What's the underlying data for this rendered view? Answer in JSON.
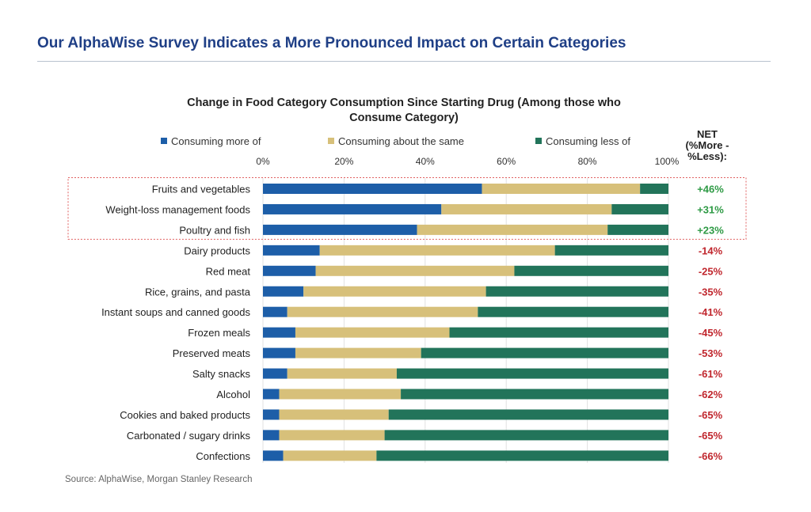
{
  "slide": {
    "title": "Our AlphaWise Survey Indicates a More Pronounced Impact on Certain Categories",
    "source": "Source: AlphaWise, Morgan Stanley Research"
  },
  "chart_data": {
    "type": "bar",
    "orientation": "horizontal",
    "stacked": true,
    "title": "Change in Food Category Consumption Since Starting Drug (Among those who Consume Category)",
    "title_lines": [
      "Change in Food Category Consumption Since Starting Drug (Among those who",
      "Consume Category)"
    ],
    "net_header_lines": [
      "NET",
      "(%More -",
      "%Less):"
    ],
    "x_ticks": [
      "0%",
      "20%",
      "40%",
      "60%",
      "80%",
      "100%"
    ],
    "xlim": [
      0,
      100
    ],
    "grid": true,
    "legend_position": "top",
    "colors": {
      "more": "#1d5ea8",
      "same": "#d7c07a",
      "less": "#22745a",
      "net_positive": "#2e9a45",
      "net_negative": "#c0262d",
      "highlight_box": "#e06060"
    },
    "categories": [
      "Fruits and vegetables",
      "Weight-loss management foods",
      "Poultry and fish",
      "Dairy products",
      "Red meat",
      "Rice, grains, and pasta",
      "Instant soups and canned goods",
      "Frozen meals",
      "Preserved meats",
      "Salty snacks",
      "Alcohol",
      "Cookies and baked products",
      "Carbonated / sugary drinks",
      "Confections"
    ],
    "series": [
      {
        "name": "Consuming more of",
        "values": [
          54,
          44,
          38,
          14,
          13,
          10,
          6,
          8,
          8,
          6,
          4,
          4,
          4,
          5
        ]
      },
      {
        "name": "Consuming about the same",
        "values": [
          39,
          42,
          47,
          58,
          49,
          45,
          47,
          38,
          31,
          27,
          30,
          27,
          26,
          23
        ]
      },
      {
        "name": "Consuming less of",
        "values": [
          7,
          14,
          15,
          28,
          38,
          45,
          47,
          54,
          61,
          67,
          66,
          69,
          70,
          72
        ]
      }
    ],
    "net_labels": [
      "+46%",
      "+31%",
      "+23%",
      "-14%",
      "-25%",
      "-35%",
      "-41%",
      "-45%",
      "-53%",
      "-61%",
      "-62%",
      "-65%",
      "-65%",
      "-66%"
    ],
    "highlighted_categories": [
      "Fruits and vegetables",
      "Weight-loss management foods",
      "Poultry and fish"
    ]
  }
}
